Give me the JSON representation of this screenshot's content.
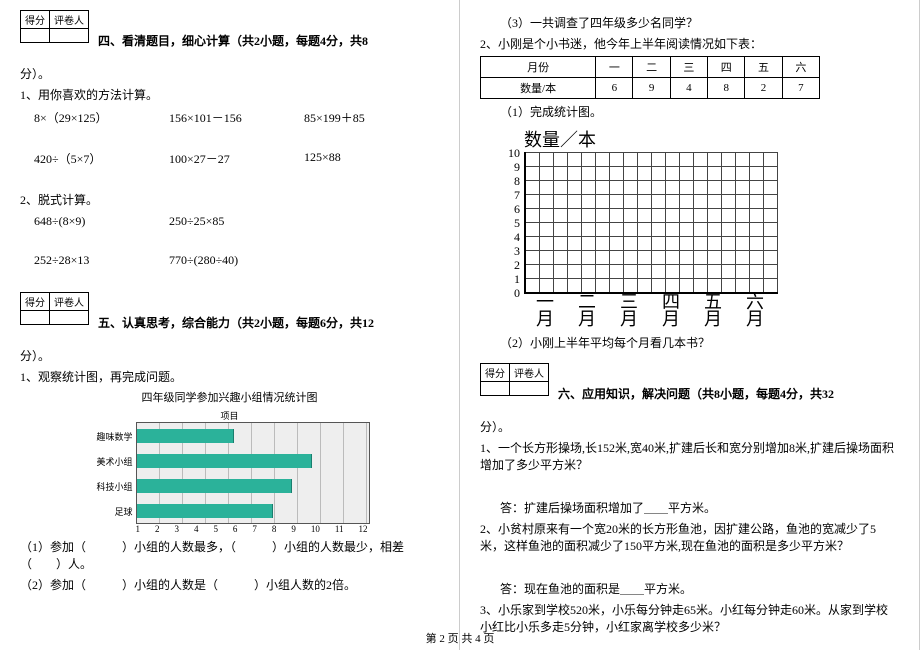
{
  "left": {
    "score_header": [
      "得分",
      "评卷人"
    ],
    "sec4_title": "四、看清题目，细心计算（共2小题，每题4分，共8",
    "sec4_suffix": "分）。",
    "q4_1": "1、用你喜欢的方法计算。",
    "calc1": [
      "8×（29×125）",
      "156×101－156",
      "85×199＋85"
    ],
    "calc2": [
      "420÷（5×7）",
      "100×27－27",
      "125×88"
    ],
    "q4_2": "2、脱式计算。",
    "calc3": [
      "648÷(8×9)",
      "250÷25×85"
    ],
    "calc4": [
      "252÷28×13",
      "770÷(280÷40)"
    ],
    "sec5_title": "五、认真思考，综合能力（共2小题，每题6分，共12",
    "sec5_suffix": "分）。",
    "q5_1": "1、观察统计图，再完成问题。",
    "chart1": {
      "title": "四年级同学参加兴趣小组情况统计图",
      "legend": "项目",
      "y_labels": [
        "趣味数学",
        "美术小组",
        "科技小组",
        "足球"
      ],
      "values": [
        5,
        9,
        8,
        7
      ],
      "bar_color": "#2bb29a",
      "grid_bg": "#eeeeee",
      "x_max": 12,
      "x_ticks": [
        "1",
        "2",
        "3",
        "4",
        "5",
        "6",
        "7",
        "8",
        "9",
        "10",
        "11",
        "12"
      ]
    },
    "q5_1_a": "（1）参加（　　　）小组的人数最多，（　　　）小组的人数最少，相差（　　）人。",
    "q5_1_b": "（2）参加（　　　）小组的人数是（　　　）小组人数的2倍。"
  },
  "right": {
    "q5_1_c": "（3）一共调查了四年级多少名同学？",
    "q5_2": "2、小刚是个小书迷，他今年上半年阅读情况如下表：",
    "reading": {
      "head": [
        "月份",
        "一",
        "二",
        "三",
        "四",
        "五",
        "六"
      ],
      "row_label": "数量/本",
      "values": [
        6,
        9,
        4,
        8,
        2,
        7
      ]
    },
    "q5_2_a": "（1）完成统计图。",
    "chart2": {
      "title": "数量／本",
      "y_ticks": [
        "10",
        "9",
        "8",
        "7",
        "6",
        "5",
        "4",
        "3",
        "2",
        "1",
        "0"
      ],
      "x_labels": [
        "一",
        "二",
        "三",
        "四",
        "五",
        "六"
      ],
      "x_suffix": "月"
    },
    "q5_2_b": "（2）小刚上半年平均每个月看几本书？",
    "score_header": [
      "得分",
      "评卷人"
    ],
    "sec6_title": "六、应用知识，解决问题（共8小题，每题4分，共32",
    "sec6_suffix": "分）。",
    "q6_1": "1、一个长方形操场,长152米,宽40米,扩建后长和宽分别增加8米,扩建后操场面积增加了多少平方米？",
    "q6_1_ans": "答：扩建后操场面积增加了＿＿平方米。",
    "q6_2": "2、小贫村原来有一个宽20米的长方形鱼池，因扩建公路，鱼池的宽减少了5米，这样鱼池的面积减少了150平方米,现在鱼池的面积是多少平方米？",
    "q6_2_ans": "答：现在鱼池的面积是＿＿平方米。",
    "q6_3": "3、小乐家到学校520米，小乐每分钟走65米。小红每分钟走60米。从家到学校小红比小乐多走5分钟，小红家离学校多少米？"
  },
  "footer": "第 2 页  共 4 页"
}
